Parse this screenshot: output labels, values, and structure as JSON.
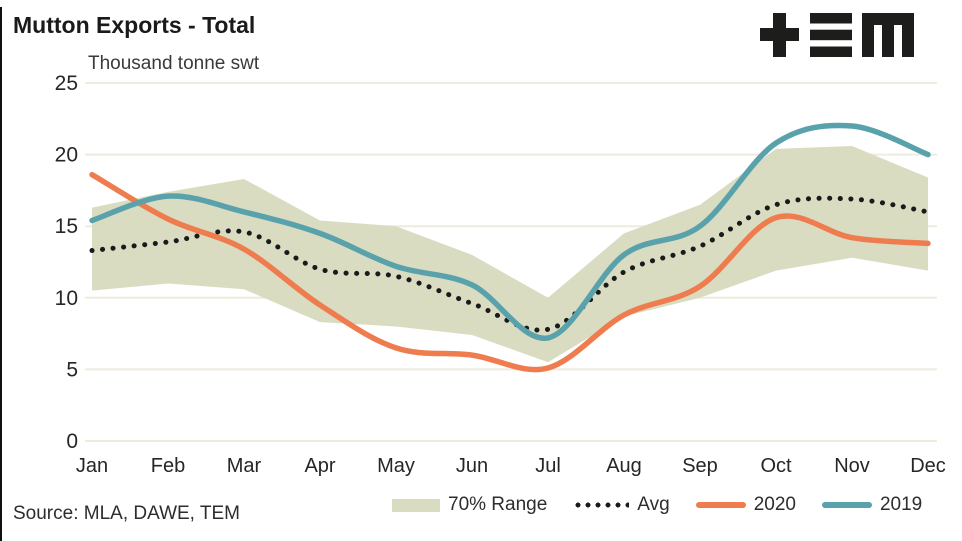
{
  "title": "Mutton Exports - Total",
  "units_label": "Thousand tonne swt",
  "source": "Source: MLA, DAWE, TEM",
  "logo_name": "TEM logo",
  "colors": {
    "range_fill": "#dadcc2",
    "avg": "#1a1a1a",
    "y2020": "#ee7c4e",
    "y2019": "#5aa2ab",
    "gridline": "#efebde",
    "tick_text": "#262626",
    "logo": "#1d1d1b"
  },
  "legend": [
    {
      "id": "range",
      "label": "70% Range"
    },
    {
      "id": "avg",
      "label": "Avg"
    },
    {
      "id": "y2020",
      "label": "2020"
    },
    {
      "id": "y2019",
      "label": "2019"
    }
  ],
  "chart_data": {
    "type": "line",
    "title": "Mutton Exports - Total",
    "ylabel": "Thousand tonne swt",
    "xlabel": "",
    "ylim": [
      0,
      25
    ],
    "yticks": [
      0,
      5,
      10,
      15,
      20,
      25
    ],
    "grid": "horizontal",
    "legend_position": "bottom",
    "categories": [
      "Jan",
      "Feb",
      "Mar",
      "Apr",
      "May",
      "Jun",
      "Jul",
      "Aug",
      "Sep",
      "Oct",
      "Nov",
      "Dec"
    ],
    "series": [
      {
        "name": "70% Range",
        "type": "band",
        "low": [
          10.5,
          11.0,
          10.6,
          8.3,
          8.0,
          7.4,
          5.5,
          8.7,
          10.0,
          11.9,
          12.8,
          11.9
        ],
        "high": [
          16.3,
          17.4,
          18.3,
          15.4,
          15.0,
          13.0,
          10.0,
          14.5,
          16.5,
          20.4,
          20.6,
          18.4
        ]
      },
      {
        "name": "Avg",
        "type": "dotted_line",
        "values": [
          13.3,
          13.9,
          14.6,
          12.0,
          11.5,
          9.6,
          7.8,
          11.8,
          13.6,
          16.5,
          16.9,
          16.0
        ]
      },
      {
        "name": "2020",
        "type": "line",
        "values": [
          18.6,
          15.5,
          13.4,
          9.5,
          6.5,
          6.0,
          5.1,
          8.8,
          10.8,
          15.6,
          14.2,
          13.8
        ]
      },
      {
        "name": "2019",
        "type": "line",
        "values": [
          15.4,
          17.1,
          16.0,
          14.5,
          12.2,
          10.9,
          7.2,
          13.0,
          15.0,
          20.8,
          22.0,
          20.0
        ]
      }
    ]
  }
}
